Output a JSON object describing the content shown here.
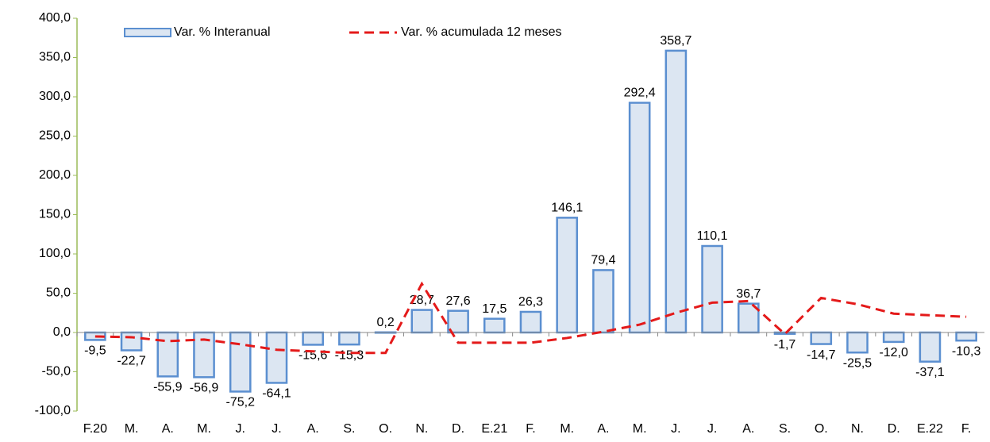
{
  "chart_data": {
    "type": "bar-line",
    "categories": [
      "F.20",
      "M.",
      "A.",
      "M.",
      "J.",
      "J.",
      "A.",
      "S.",
      "O.",
      "N.",
      "D.",
      "E.21",
      "F.",
      "M.",
      "A.",
      "M.",
      "J.",
      "J.",
      "A.",
      "S.",
      "O.",
      "N.",
      "D.",
      "E.22",
      "F."
    ],
    "series": [
      {
        "name": "Var. % Interanual",
        "type": "bar",
        "color": "#dce6f2",
        "stroke": "#5b8fd0",
        "values": [
          -9.5,
          -22.7,
          -55.9,
          -56.9,
          -75.2,
          -64.1,
          -15.6,
          -15.3,
          0.2,
          28.7,
          27.6,
          17.5,
          26.3,
          146.1,
          79.4,
          292.4,
          358.7,
          110.1,
          36.7,
          -1.7,
          -14.7,
          -25.5,
          -12.0,
          -37.1,
          -10.3
        ],
        "value_labels": [
          "-9,5",
          "-22,7",
          "-55,9",
          "-56,9",
          "-75,2",
          "-64,1",
          "-15,6",
          "-15,3",
          "0,2",
          "28,7",
          "27,6",
          "17,5",
          "26,3",
          "146,1",
          "79,4",
          "292,4",
          "358,7",
          "110,1",
          "36,7",
          "-1,7",
          "-14,7",
          "-25,5",
          "-12,0",
          "-37,1",
          "-10,3"
        ]
      },
      {
        "name": "Var. % acumulada 12 meses",
        "type": "line",
        "color": "#e41a1a",
        "values": [
          -5,
          -6,
          -11,
          -9,
          -15,
          -22,
          -24,
          -26,
          -26,
          62,
          -13,
          -13,
          -13,
          -7,
          1,
          10,
          25,
          38,
          40,
          -2,
          44,
          36,
          24,
          22,
          20
        ]
      }
    ],
    "ylim": [
      -100,
      400
    ],
    "yticks": [
      {
        "value": -100,
        "label": "-100,0"
      },
      {
        "value": -50,
        "label": "-50,0"
      },
      {
        "value": 0,
        "label": "0,0"
      },
      {
        "value": 50,
        "label": "50,0"
      },
      {
        "value": 100,
        "label": "100,0"
      },
      {
        "value": 150,
        "label": "150,0"
      },
      {
        "value": 200,
        "label": "200,0"
      },
      {
        "value": 250,
        "label": "250,0"
      },
      {
        "value": 300,
        "label": "300,0"
      },
      {
        "value": 350,
        "label": "350,0"
      },
      {
        "value": 400,
        "label": "400,0"
      }
    ],
    "legend": "top"
  }
}
